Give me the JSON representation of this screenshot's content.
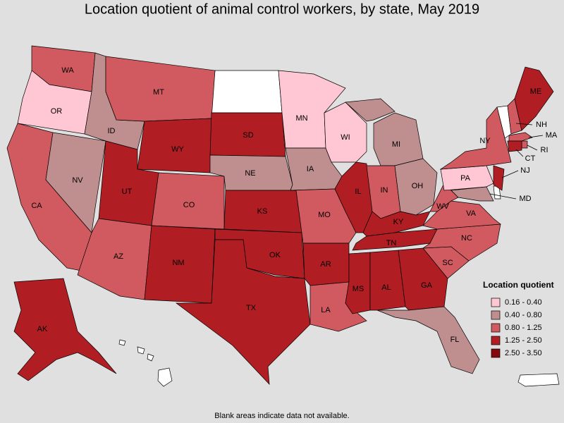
{
  "title": "Location quotient of animal control workers, by state, May 2019",
  "states": [
    {
      "label": "WA",
      "class": 2
    },
    {
      "label": "OR",
      "class": 0
    },
    {
      "label": "CA",
      "class": 2
    },
    {
      "label": "NV",
      "class": 1
    },
    {
      "label": "ID",
      "class": 1
    },
    {
      "label": "MT",
      "class": 2
    },
    {
      "label": "WY",
      "class": 3
    },
    {
      "label": "UT",
      "class": 3
    },
    {
      "label": "AZ",
      "class": 2
    },
    {
      "label": "CO",
      "class": 2
    },
    {
      "label": "NM",
      "class": 3
    },
    {
      "label": "SD",
      "class": 3
    },
    {
      "label": "NE",
      "class": 1
    },
    {
      "label": "KS",
      "class": 3
    },
    {
      "label": "OK",
      "class": 3
    },
    {
      "label": "TX",
      "class": 3
    },
    {
      "label": "MN",
      "class": 0
    },
    {
      "label": "IA",
      "class": 1
    },
    {
      "label": "MO",
      "class": 2
    },
    {
      "label": "AR",
      "class": 3
    },
    {
      "label": "LA",
      "class": 2
    },
    {
      "label": "WI",
      "class": 0
    },
    {
      "label": "IL",
      "class": 3
    },
    {
      "label": "MI",
      "class": 1
    },
    {
      "label": "IN",
      "class": 2
    },
    {
      "label": "OH",
      "class": 1
    },
    {
      "label": "KY",
      "class": 3
    },
    {
      "label": "TN",
      "class": 3
    },
    {
      "label": "MS",
      "class": 3
    },
    {
      "label": "AL",
      "class": 3
    },
    {
      "label": "GA",
      "class": 3
    },
    {
      "label": "FL",
      "class": 1
    },
    {
      "label": "SC",
      "class": 2
    },
    {
      "label": "NC",
      "class": 2
    },
    {
      "label": "VA",
      "class": 2
    },
    {
      "label": "WV",
      "class": 2
    },
    {
      "label": "PA",
      "class": 0
    },
    {
      "label": "NY",
      "class": 2
    },
    {
      "label": "NJ",
      "class": 3
    },
    {
      "label": "MD",
      "class": 1
    },
    {
      "label": "NH",
      "class": 2
    },
    {
      "label": "ME",
      "class": 3
    },
    {
      "label": "MA",
      "class": 2
    },
    {
      "label": "RI",
      "class": 2
    },
    {
      "label": "CT",
      "class": 3
    },
    {
      "label": "AK",
      "class": 3
    }
  ],
  "legend": {
    "title": "Location quotient",
    "items": [
      {
        "label": "0.16 - 0.40",
        "color": "#ffc6d3"
      },
      {
        "label": "0.40 - 0.80",
        "color": "#bf8e8e"
      },
      {
        "label": "0.80 - 1.25",
        "color": "#d05a5f"
      },
      {
        "label": "1.25 - 2.50",
        "color": "#b01e24"
      },
      {
        "label": "2.50 - 3.50",
        "color": "#850a0e"
      }
    ]
  },
  "note": "Blank areas indicate data not available."
}
